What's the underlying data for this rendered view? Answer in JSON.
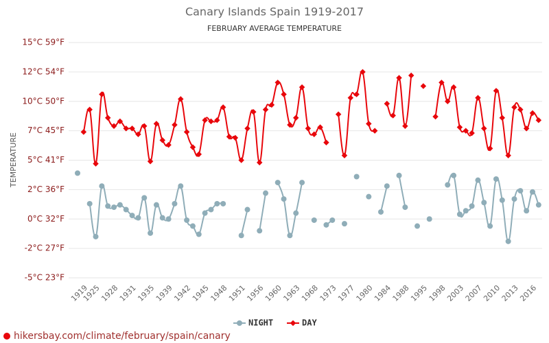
{
  "chart_data": {
    "type": "line",
    "title": "Canary Islands Spain 1919-2017",
    "subtitle": "FEBRUARY AVERAGE TEMPERATURE",
    "y_label": "TEMPERATURE",
    "footer": "hikersbay.com/climate/february/spain/canary",
    "categories": [
      null,
      "1919",
      null,
      "1925",
      null,
      null,
      "1928",
      null,
      null,
      "1931",
      null,
      null,
      "1935",
      null,
      null,
      "1939",
      null,
      null,
      "1942",
      null,
      null,
      "1945",
      null,
      null,
      "1948",
      null,
      null,
      "1951",
      null,
      null,
      "1956",
      null,
      null,
      "1960",
      null,
      null,
      "1963",
      null,
      null,
      "1968",
      null,
      null,
      "1973",
      null,
      null,
      "1977",
      null,
      null,
      "1980",
      null,
      null,
      "1984",
      null,
      null,
      "1988",
      null,
      null,
      "1995",
      null,
      null,
      "1998",
      null,
      null,
      "2003",
      null,
      null,
      "2007",
      null,
      null,
      "2010",
      null,
      null,
      "2013",
      null,
      null,
      "2016",
      null
    ],
    "series": [
      {
        "name": "NIGHT",
        "color": "#8fadb8",
        "values": [
          3.9,
          null,
          1.3,
          -1.5,
          2.8,
          1.1,
          1.0,
          1.2,
          0.8,
          0.3,
          0.1,
          1.8,
          -1.2,
          1.2,
          0.1,
          0.0,
          1.3,
          2.8,
          -0.1,
          -0.6,
          -1.3,
          0.5,
          0.8,
          1.3,
          1.3,
          null,
          null,
          -1.4,
          0.8,
          null,
          -1.0,
          2.2,
          null,
          3.1,
          1.7,
          -1.4,
          0.5,
          3.1,
          null,
          -0.1,
          null,
          -0.5,
          -0.1,
          null,
          -0.4,
          null,
          3.6,
          null,
          1.9,
          null,
          0.6,
          2.8,
          null,
          3.7,
          1.0,
          null,
          -0.6,
          null,
          0.0,
          null,
          null,
          2.9,
          3.7,
          0.4,
          0.7,
          1.1,
          3.3,
          1.4,
          -0.6,
          3.4,
          1.6,
          -1.9,
          1.7,
          2.4,
          0.7,
          2.3,
          1.2
        ]
      },
      {
        "name": "DAY",
        "color": "#e8060b",
        "values": [
          null,
          7.4,
          9.3,
          4.7,
          10.6,
          8.6,
          7.9,
          8.3,
          7.7,
          7.7,
          7.2,
          7.9,
          4.9,
          8.1,
          6.7,
          6.3,
          8.0,
          10.2,
          7.4,
          6.1,
          5.5,
          8.4,
          8.3,
          8.4,
          9.5,
          7.0,
          6.9,
          5.0,
          7.7,
          9.1,
          4.8,
          9.3,
          9.7,
          11.6,
          10.6,
          8.0,
          8.6,
          11.2,
          7.7,
          7.2,
          7.8,
          6.5,
          null,
          8.9,
          5.4,
          10.3,
          10.6,
          12.5,
          8.1,
          7.5,
          null,
          9.8,
          8.8,
          12.0,
          7.9,
          12.2,
          null,
          11.3,
          null,
          8.7,
          11.6,
          10.0,
          11.2,
          7.8,
          7.5,
          7.3,
          10.3,
          7.7,
          6.0,
          10.9,
          8.6,
          5.4,
          9.5,
          9.3,
          7.7,
          9.0,
          8.4
        ]
      }
    ],
    "ylim": [
      -5,
      15
    ],
    "yticks": [
      {
        "value": -5,
        "label": "-5°C 23°F"
      },
      {
        "value": -2.5,
        "label": "-2°C 27°F"
      },
      {
        "value": 0,
        "label": "0°C 32°F"
      },
      {
        "value": 2.5,
        "label": "2°C 36°F"
      },
      {
        "value": 5,
        "label": "5°C 41°F"
      },
      {
        "value": 7.5,
        "label": "7°C 45°F"
      },
      {
        "value": 10,
        "label": "10°C 50°F"
      },
      {
        "value": 12.5,
        "label": "12°C 54°F"
      },
      {
        "value": 15,
        "label": "15°C 59°F"
      }
    ],
    "grid": true,
    "legend": "bottom"
  }
}
